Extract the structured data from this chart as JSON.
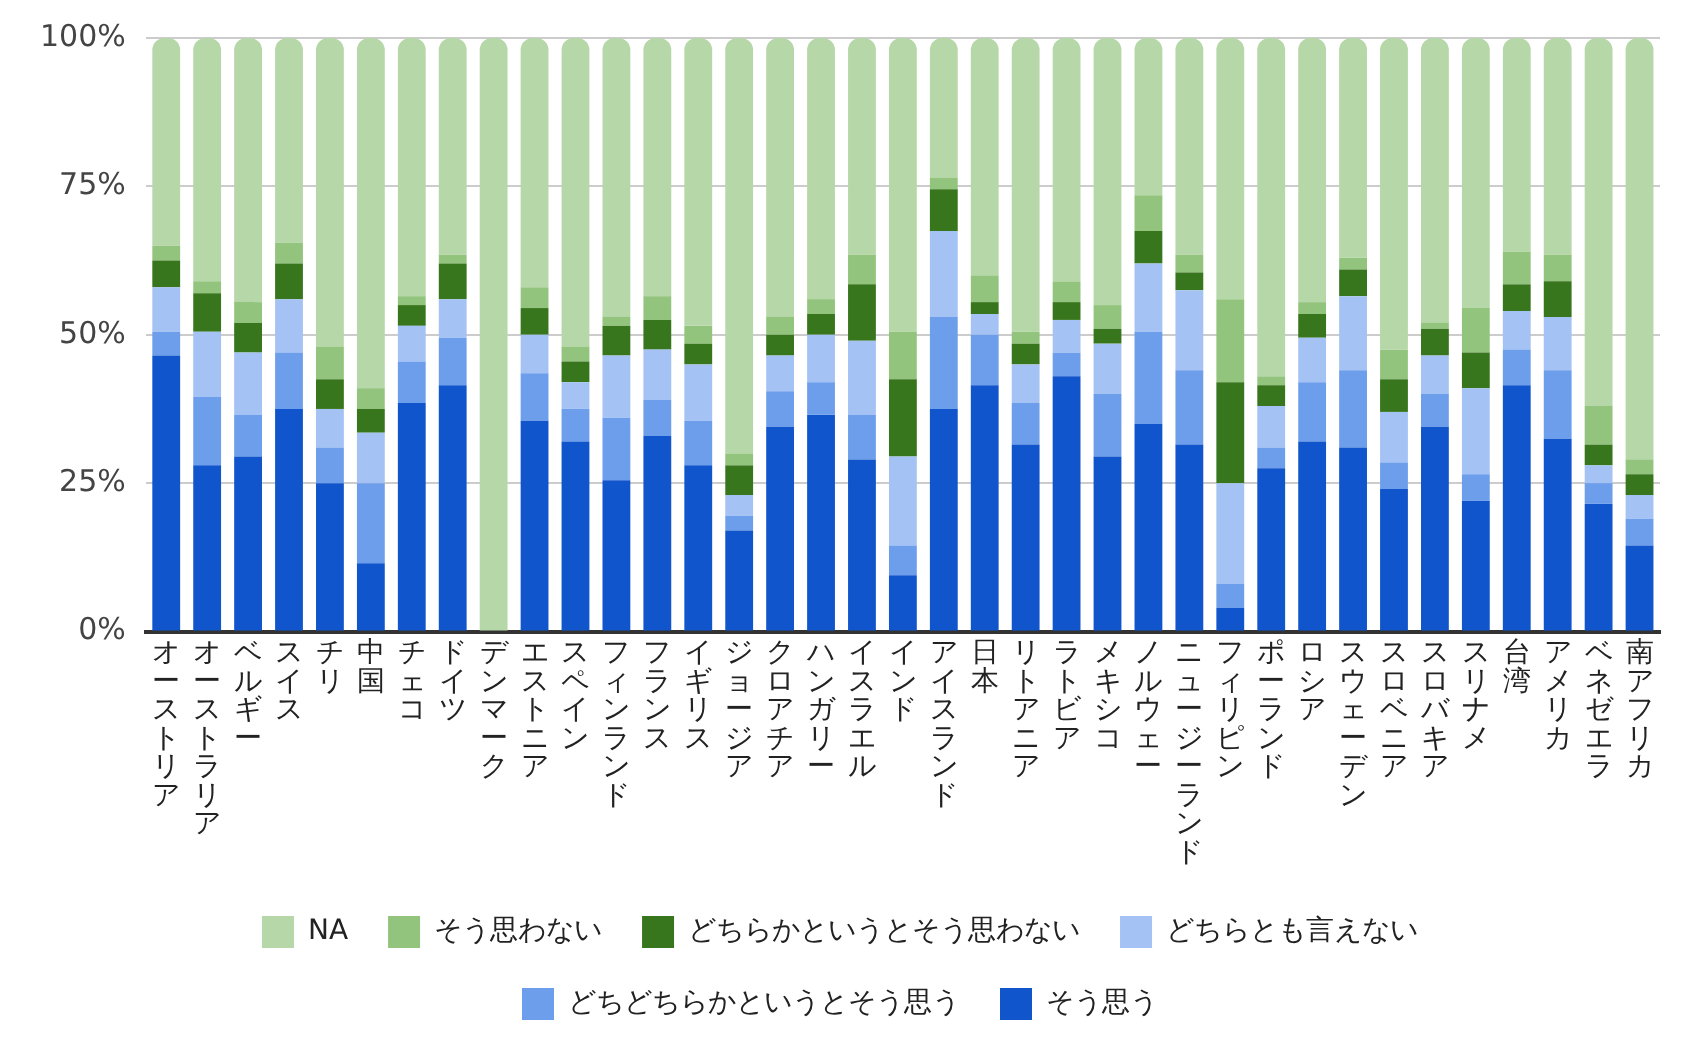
{
  "chart_data": {
    "type": "bar",
    "stacked": true,
    "categories": [
      "オーストリア",
      "オーストラリア",
      "ベルギー",
      "スイス",
      "チリ",
      "中国",
      "チェコ",
      "ドイツ",
      "デンマーク",
      "エストニア",
      "スペイン",
      "フィンランド",
      "フランス",
      "イギリス",
      "ジョージア",
      "クロアチア",
      "ハンガリー",
      "イスラエル",
      "インド",
      "アイスランド",
      "日本",
      "リトアニア",
      "ラトビア",
      "メキシコ",
      "ノルウェー",
      "ニュージーランド",
      "フィリピン",
      "ポーランド",
      "ロシア",
      "スウェーデン",
      "スロベニア",
      "スロバキア",
      "スリナメ",
      "台湾",
      "アメリカ",
      "ベネゼエラ",
      "南アフリカ"
    ],
    "series": [
      {
        "name": "そう思う",
        "color": "#1155cc",
        "values": [
          46.5,
          28,
          29.5,
          37.5,
          25,
          11.5,
          38.5,
          41.5,
          0,
          35.5,
          32,
          25.5,
          33,
          28,
          17,
          34.5,
          36.5,
          29,
          9.5,
          37.5,
          41.5,
          31.5,
          43,
          29.5,
          35,
          31.5,
          4,
          27.5,
          32,
          31,
          24,
          34.5,
          22,
          41.5,
          32.5,
          21.5,
          14.5
        ]
      },
      {
        "name": "どちどちらかというとそう思う",
        "color": "#6d9eeb",
        "values": [
          4,
          11.5,
          7,
          9.5,
          6,
          13.5,
          7,
          8,
          0,
          8,
          5.5,
          10.5,
          6,
          7.5,
          2.5,
          6,
          5.5,
          7.5,
          5,
          15.5,
          8.5,
          7,
          4,
          10.5,
          15.5,
          12.5,
          4,
          3.5,
          10,
          13,
          4.5,
          5.5,
          4.5,
          6,
          11.5,
          3.5,
          4.5
        ]
      },
      {
        "name": "どちらとも言えない",
        "color": "#a4c2f4",
        "values": [
          7.5,
          11,
          10.5,
          9,
          6.5,
          8.5,
          6,
          6.5,
          0,
          6.5,
          4.5,
          10.5,
          8.5,
          9.5,
          3.5,
          6,
          8,
          12.5,
          15,
          14.5,
          3.5,
          6.5,
          5.5,
          8.5,
          11.5,
          13.5,
          17,
          7,
          7.5,
          12.5,
          8.5,
          6.5,
          14.5,
          6.5,
          9,
          3,
          4
        ]
      },
      {
        "name": "どちらかというとそう思わない",
        "color": "#38761d",
        "values": [
          4.5,
          6.5,
          5,
          6,
          5,
          4,
          3.5,
          6,
          0,
          4.5,
          3.5,
          5,
          5,
          3.5,
          5,
          3.5,
          3.5,
          9.5,
          13,
          7,
          2,
          3.5,
          3,
          2.5,
          5.5,
          3,
          17,
          3.5,
          4,
          4.5,
          5.5,
          4.5,
          6,
          4.5,
          6,
          3.5,
          3.5
        ]
      },
      {
        "name": "そう思わない",
        "color": "#93c47d",
        "values": [
          2.5,
          2,
          3.5,
          3.5,
          5.5,
          3.5,
          1.5,
          1.5,
          0,
          3.5,
          2.5,
          1.5,
          4,
          3,
          2,
          3,
          2.5,
          5,
          8,
          2,
          4.5,
          2,
          3.5,
          4,
          6,
          3,
          14,
          1.5,
          2,
          2,
          5,
          1,
          7.5,
          5.5,
          4.5,
          6.5,
          2.5
        ]
      },
      {
        "name": "NA",
        "color": "#b6d7a8",
        "values": [
          35,
          41,
          44.5,
          34.5,
          52,
          59,
          43.5,
          36.5,
          100,
          42,
          52,
          47,
          43.5,
          48.5,
          70,
          47,
          44,
          36.5,
          49.5,
          23.5,
          40,
          49.5,
          41,
          45,
          26.5,
          36.5,
          44,
          57,
          44.5,
          37,
          52.5,
          48,
          45.5,
          36,
          36.5,
          62,
          71
        ]
      }
    ],
    "ylim": [
      0,
      100
    ],
    "yticks": [
      {
        "value": 0,
        "label": "0%"
      },
      {
        "value": 25,
        "label": "25%"
      },
      {
        "value": 50,
        "label": "50%"
      },
      {
        "value": 75,
        "label": "75%"
      },
      {
        "value": 100,
        "label": "100%"
      }
    ],
    "grid": "y",
    "legend": "bottom"
  }
}
